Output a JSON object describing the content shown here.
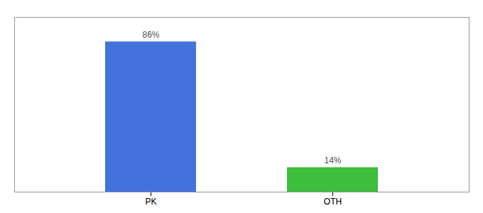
{
  "chart_data": {
    "type": "bar",
    "categories": [
      "PK",
      "OTH"
    ],
    "values": [
      86,
      14
    ],
    "value_labels": [
      "86%",
      "14%"
    ],
    "colors": [
      "#4472DD",
      "#3DBE3D"
    ],
    "ylim": [
      0,
      100
    ],
    "data_labels": true,
    "tick_labels": "x"
  }
}
